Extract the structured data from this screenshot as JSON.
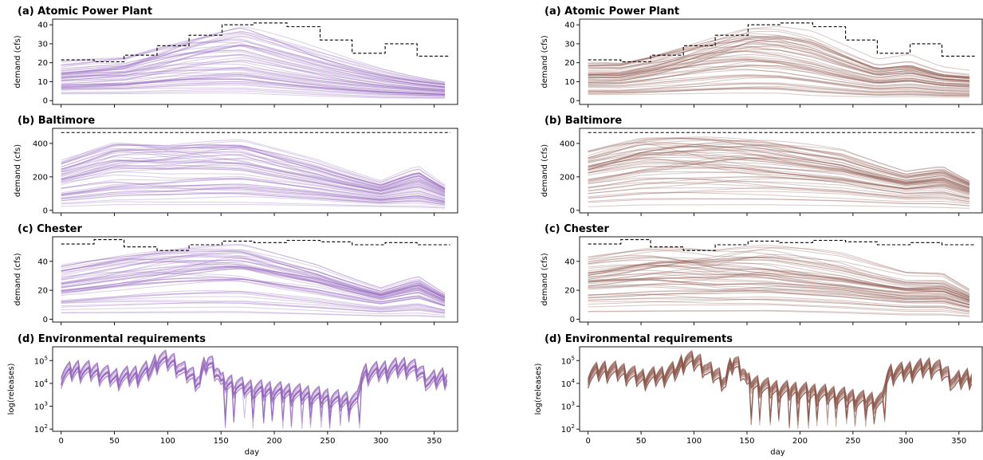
{
  "chart_data": [
    {
      "type": "line",
      "column": "left",
      "panel": "a",
      "title": "(a) Atomic Power Plant",
      "ylabel": "demand (cfs)",
      "xlim": [
        -8,
        372
      ],
      "ylim": [
        -2,
        43
      ],
      "yticks": [
        0,
        10,
        20,
        30,
        40
      ],
      "ytick_labels": [
        "0",
        "10",
        "20",
        "30",
        "40"
      ],
      "xticks": [
        0,
        50,
        100,
        150,
        200,
        250,
        300,
        350
      ],
      "xtick_labels": [],
      "series_color": "#9467bd",
      "series": [
        {
          "name": "",
          "style": "dashed-step",
          "x": [
            0,
            31,
            59,
            90,
            120,
            151,
            181,
            212,
            243,
            273,
            304,
            334,
            365
          ],
          "y": [
            21.5,
            20.5,
            24,
            29,
            34.5,
            40,
            41,
            39,
            32,
            25,
            30,
            23.5,
            23.5
          ]
        }
      ],
      "ensemble": {
        "envelope": {
          "x": [
            0,
            60,
            120,
            170,
            230,
            300,
            330,
            365
          ],
          "y_low": [
            3,
            3,
            3,
            3,
            2,
            1,
            1,
            1
          ],
          "y_high": [
            21.5,
            23,
            33,
            40,
            32,
            22,
            18,
            14
          ]
        }
      }
    },
    {
      "type": "line",
      "column": "left",
      "panel": "b",
      "title": "(b) Baltimore",
      "ylabel": "demand (cfs)",
      "xlim": [
        -8,
        372
      ],
      "ylim": [
        -15,
        490
      ],
      "yticks": [
        0,
        200,
        400
      ],
      "ytick_labels": [
        "0",
        "200",
        "400"
      ],
      "xticks": [
        0,
        50,
        100,
        150,
        200,
        250,
        300,
        350
      ],
      "xtick_labels": [],
      "series_color": "#9467bd",
      "series": [
        {
          "name": "",
          "style": "dashed-step",
          "x": [
            0,
            365
          ],
          "y": [
            465,
            465
          ]
        }
      ],
      "ensemble": {
        "envelope": {
          "x": [
            0,
            50,
            100,
            170,
            240,
            300,
            335,
            365
          ],
          "y_low": [
            20,
            30,
            30,
            30,
            25,
            20,
            15,
            10
          ],
          "y_high": [
            330,
            420,
            400,
            440,
            350,
            230,
            380,
            200
          ]
        }
      }
    },
    {
      "type": "line",
      "column": "left",
      "panel": "c",
      "title": "(c) Chester",
      "ylabel": "demand (cfs)",
      "xlim": [
        -8,
        372
      ],
      "ylim": [
        -2,
        57
      ],
      "yticks": [
        0,
        20,
        40
      ],
      "ytick_labels": [
        "0",
        "20",
        "40"
      ],
      "xticks": [
        0,
        50,
        100,
        150,
        200,
        250,
        300,
        350
      ],
      "xtick_labels": [],
      "series_color": "#9467bd",
      "series": [
        {
          "name": "",
          "style": "dashed-step",
          "x": [
            0,
            31,
            59,
            90,
            120,
            151,
            181,
            212,
            243,
            273,
            304,
            334,
            365
          ],
          "y": [
            52,
            55,
            50,
            47.5,
            51.5,
            54,
            53,
            54.5,
            53.5,
            51.5,
            53,
            51.5,
            51.5
          ]
        }
      ],
      "ensemble": {
        "envelope": {
          "x": [
            0,
            60,
            120,
            170,
            240,
            300,
            335,
            365
          ],
          "y_low": [
            4,
            4,
            4,
            4,
            3,
            2,
            2,
            1
          ],
          "y_high": [
            40,
            45,
            50,
            54,
            45,
            30,
            45,
            25
          ]
        }
      }
    },
    {
      "type": "line",
      "column": "left",
      "panel": "d",
      "title": "(d) Environmental requirements",
      "ylabel": "log(releases)",
      "xlabel": "day",
      "yscale": "log",
      "ylim": [
        80,
        400000
      ],
      "xlim": [
        -8,
        372
      ],
      "yticks": [
        100,
        1000,
        10000,
        100000
      ],
      "xticks": [
        0,
        50,
        100,
        150,
        200,
        250,
        300,
        350
      ],
      "xtick_labels": [
        "0",
        "50",
        "100",
        "150",
        "200",
        "250",
        "300",
        "350"
      ],
      "series_color": "#9467bd",
      "ensemble": {
        "profile": {
          "x": [
            0,
            15,
            30,
            50,
            70,
            85,
            92,
            105,
            112,
            122,
            130,
            138,
            150,
            175,
            200,
            225,
            250,
            265,
            278,
            285,
            300,
            325,
            345,
            365
          ],
          "y": [
            40000,
            70000,
            60000,
            30000,
            40000,
            70000,
            200000,
            150000,
            70000,
            40000,
            20000,
            150000,
            20000,
            10000,
            8000,
            6000,
            4000,
            3000,
            3000,
            50000,
            60000,
            100000,
            20000,
            40000
          ]
        }
      }
    },
    {
      "type": "line",
      "column": "right",
      "panel": "a",
      "title": "(a) Atomic Power Plant",
      "ylabel": "demand (cfs)",
      "xlim": [
        -8,
        372
      ],
      "ylim": [
        -2,
        43
      ],
      "yticks": [
        0,
        10,
        20,
        30,
        40
      ],
      "ytick_labels": [
        "0",
        "10",
        "20",
        "30",
        "40"
      ],
      "xticks": [
        0,
        50,
        100,
        150,
        200,
        250,
        300,
        350
      ],
      "xtick_labels": [],
      "series_color": "#8c564b",
      "series": [
        {
          "name": "",
          "style": "dashed-step",
          "x": [
            0,
            31,
            59,
            90,
            120,
            151,
            181,
            212,
            243,
            273,
            304,
            334,
            365
          ],
          "y": [
            21.5,
            20.5,
            24,
            29,
            34.5,
            40,
            41,
            39,
            32,
            25,
            30,
            23.5,
            23.5
          ]
        }
      ],
      "ensemble": {
        "envelope": {
          "x": [
            0,
            31,
            59,
            90,
            120,
            151,
            181,
            212,
            243,
            273,
            304,
            334,
            365
          ],
          "y_low": [
            2,
            2,
            2,
            2,
            2,
            2,
            2,
            1,
            1,
            1,
            1,
            1,
            1
          ],
          "y_high": [
            21.5,
            20.5,
            24,
            29,
            34.5,
            40,
            41,
            39,
            32,
            25,
            30,
            23.5,
            22
          ]
        }
      }
    },
    {
      "type": "line",
      "column": "right",
      "panel": "b",
      "title": "(b) Baltimore",
      "ylabel": "demand (cfs)",
      "xlim": [
        -8,
        372
      ],
      "ylim": [
        -15,
        490
      ],
      "yticks": [
        0,
        200,
        400
      ],
      "ytick_labels": [
        "0",
        "200",
        "400"
      ],
      "xticks": [
        0,
        50,
        100,
        150,
        200,
        250,
        300,
        350
      ],
      "xtick_labels": [],
      "series_color": "#8c564b",
      "series": [
        {
          "name": "",
          "style": "dashed-step",
          "x": [
            0,
            365
          ],
          "y": [
            465,
            465
          ]
        }
      ],
      "ensemble": {
        "envelope": {
          "x": [
            0,
            50,
            100,
            170,
            240,
            300,
            335,
            365
          ],
          "y_low": [
            20,
            30,
            30,
            30,
            25,
            20,
            15,
            10
          ],
          "y_high": [
            390,
            450,
            450,
            450,
            430,
            320,
            400,
            260
          ]
        }
      }
    },
    {
      "type": "line",
      "column": "right",
      "panel": "c",
      "title": "(c) Chester",
      "ylabel": "demand (cfs)",
      "xlim": [
        -8,
        372
      ],
      "ylim": [
        -2,
        57
      ],
      "yticks": [
        0,
        20,
        40
      ],
      "ytick_labels": [
        "0",
        "20",
        "40"
      ],
      "xticks": [
        0,
        50,
        100,
        150,
        200,
        250,
        300,
        350
      ],
      "xtick_labels": [],
      "series_color": "#8c564b",
      "series": [
        {
          "name": "",
          "style": "dashed-step",
          "x": [
            0,
            31,
            59,
            90,
            120,
            151,
            181,
            212,
            243,
            273,
            304,
            334,
            365
          ],
          "y": [
            52,
            55,
            50,
            47.5,
            51.5,
            54,
            53,
            54.5,
            53.5,
            51.5,
            53,
            51.5,
            51.5
          ]
        }
      ],
      "ensemble": {
        "envelope": {
          "x": [
            0,
            60,
            120,
            170,
            240,
            300,
            335,
            365
          ],
          "y_low": [
            4,
            4,
            4,
            4,
            3,
            2,
            2,
            1
          ],
          "y_high": [
            52,
            53,
            50,
            54,
            53,
            45,
            48,
            30
          ]
        }
      }
    },
    {
      "type": "line",
      "column": "right",
      "panel": "d",
      "title": "(d) Environmental requirements",
      "ylabel": "log(releases)",
      "xlabel": "day",
      "yscale": "log",
      "ylim": [
        80,
        400000
      ],
      "xlim": [
        -8,
        372
      ],
      "yticks": [
        100,
        1000,
        10000,
        100000
      ],
      "xticks": [
        0,
        50,
        100,
        150,
        200,
        250,
        300,
        350
      ],
      "xtick_labels": [
        "0",
        "50",
        "100",
        "150",
        "200",
        "250",
        "300",
        "350"
      ],
      "series_color": "#8c564b",
      "ensemble": {
        "profile": {
          "x": [
            0,
            15,
            30,
            50,
            70,
            85,
            92,
            105,
            112,
            122,
            130,
            138,
            150,
            175,
            200,
            225,
            250,
            265,
            278,
            285,
            300,
            325,
            345,
            365
          ],
          "y": [
            40000,
            70000,
            60000,
            30000,
            40000,
            70000,
            200000,
            150000,
            70000,
            40000,
            20000,
            150000,
            20000,
            10000,
            8000,
            6000,
            4000,
            3000,
            3000,
            50000,
            60000,
            100000,
            20000,
            40000
          ]
        }
      }
    }
  ]
}
